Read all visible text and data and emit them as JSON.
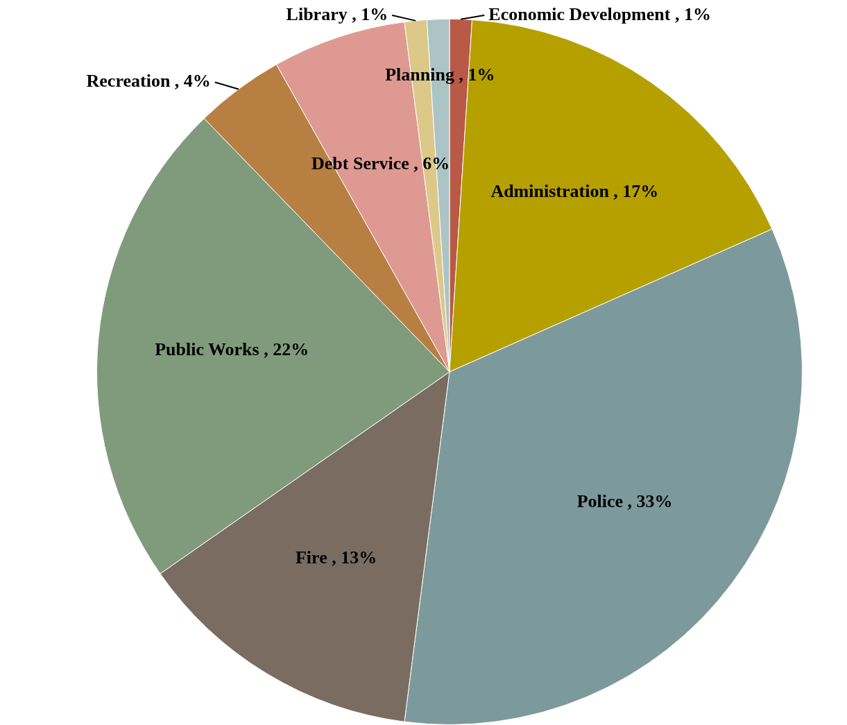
{
  "chart_data": {
    "type": "pie",
    "categories": [
      "Economic Development",
      "Administration",
      "Police",
      "Fire",
      "Public Works",
      "Recreation",
      "Debt Service",
      "Library",
      "Planning"
    ],
    "values": [
      1,
      17,
      33,
      13,
      22,
      4,
      6,
      1,
      1
    ],
    "value_labels": [
      "1%",
      "17%",
      "33%",
      "13%",
      "22%",
      "4%",
      "6%",
      "1%",
      "1%"
    ],
    "colors": [
      "#b85a46",
      "#b5a000",
      "#7c999b",
      "#7a6c61",
      "#7f9b7c",
      "#b87f43",
      "#de9a92",
      "#dcc888",
      "#adc4c6"
    ],
    "legend": false
  }
}
